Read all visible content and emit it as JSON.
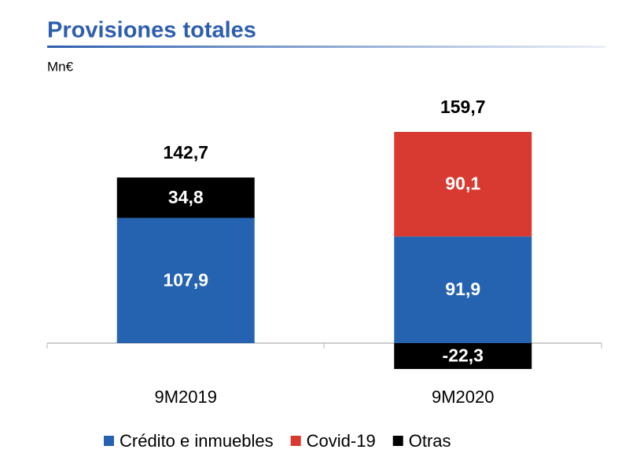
{
  "chart_data": {
    "type": "stacked_bar",
    "title": "Provisiones totales",
    "subtitle": "Mn€",
    "categories": [
      "9M2019",
      "9M2020"
    ],
    "series": [
      {
        "name": "Crédito e inmuebles",
        "color": "#2563b0",
        "values": [
          107.9,
          91.9
        ],
        "value_labels": [
          "107,9",
          "91,9"
        ]
      },
      {
        "name": "Covid-19",
        "color": "#d83a32",
        "values": [
          null,
          90.1
        ],
        "value_labels": [
          null,
          "90,1"
        ]
      },
      {
        "name": "Otras",
        "color": "#000000",
        "values": [
          34.8,
          -22.3
        ],
        "value_labels": [
          "34,8",
          "-22,3"
        ]
      }
    ],
    "totals": [
      142.7,
      159.7
    ],
    "total_labels": [
      "142,7",
      "159,7"
    ],
    "legend": "bottom"
  }
}
